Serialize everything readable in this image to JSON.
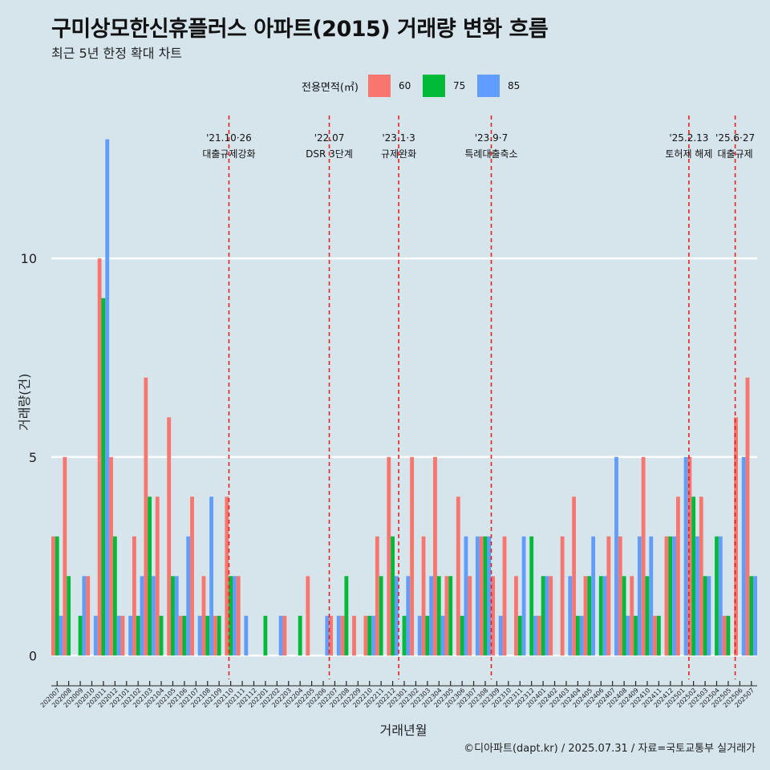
{
  "title": "구미상모한신휴플러스 아파트(2015) 거래량 변화 흐름",
  "subtitle": "최근 5년 한정 확대 차트",
  "caption": "©디아파트(dapt.kr) / 2025.07.31 / 자료=국토교통부 실거래가",
  "colors": {
    "background": "#d6e4ec",
    "grid": "#ffffff",
    "event_line": "#e8211c",
    "text": "#111111"
  },
  "legend": {
    "title": "전용면적(㎡)",
    "items": [
      {
        "label": "60",
        "color": "#f8766d"
      },
      {
        "label": "75",
        "color": "#00ba38"
      },
      {
        "label": "85",
        "color": "#619cff"
      }
    ]
  },
  "chart_data": {
    "type": "bar",
    "xlabel": "거래년월",
    "ylabel": "거래량(건)",
    "ylim": [
      -0.6,
      13.6
    ],
    "yticks": [
      0,
      5,
      10
    ],
    "grid": true,
    "legend_position": "top",
    "categories": [
      "202007",
      "202008",
      "202009",
      "202010",
      "202011",
      "202012",
      "202101",
      "202102",
      "202103",
      "202104",
      "202105",
      "202106",
      "202107",
      "202108",
      "202109",
      "202110",
      "202111",
      "202112",
      "202201",
      "202202",
      "202203",
      "202204",
      "202205",
      "202206",
      "202207",
      "202208",
      "202209",
      "202210",
      "202211",
      "202212",
      "202301",
      "202302",
      "202303",
      "202304",
      "202305",
      "202306",
      "202307",
      "202308",
      "202309",
      "202310",
      "202311",
      "202312",
      "202401",
      "202402",
      "202403",
      "202404",
      "202405",
      "202406",
      "202407",
      "202408",
      "202409",
      "202410",
      "202411",
      "202412",
      "202501",
      "202502",
      "202503",
      "202504",
      "202505",
      "202506",
      "202507"
    ],
    "bars": [
      {
        "month": "202007",
        "area": "60",
        "value": 3
      },
      {
        "month": "202007",
        "area": "75",
        "value": 3
      },
      {
        "month": "202007",
        "area": "85",
        "value": 1
      },
      {
        "month": "202008",
        "area": "60",
        "value": 5
      },
      {
        "month": "202008",
        "area": "75",
        "value": 2
      },
      {
        "month": "202009",
        "area": "75",
        "value": 1
      },
      {
        "month": "202009",
        "area": "85",
        "value": 2
      },
      {
        "month": "202010",
        "area": "60",
        "value": 2
      },
      {
        "month": "202010",
        "area": "85",
        "value": 1
      },
      {
        "month": "202011",
        "area": "60",
        "value": 10
      },
      {
        "month": "202011",
        "area": "75",
        "value": 9
      },
      {
        "month": "202011",
        "area": "85",
        "value": 13
      },
      {
        "month": "202012",
        "area": "60",
        "value": 5
      },
      {
        "month": "202012",
        "area": "75",
        "value": 3
      },
      {
        "month": "202012",
        "area": "85",
        "value": 1
      },
      {
        "month": "202101",
        "area": "60",
        "value": 1
      },
      {
        "month": "202101",
        "area": "85",
        "value": 1
      },
      {
        "month": "202102",
        "area": "60",
        "value": 3
      },
      {
        "month": "202102",
        "area": "75",
        "value": 1
      },
      {
        "month": "202102",
        "area": "85",
        "value": 2
      },
      {
        "month": "202103",
        "area": "60",
        "value": 7
      },
      {
        "month": "202103",
        "area": "75",
        "value": 4
      },
      {
        "month": "202103",
        "area": "85",
        "value": 2
      },
      {
        "month": "202104",
        "area": "60",
        "value": 4
      },
      {
        "month": "202104",
        "area": "75",
        "value": 1
      },
      {
        "month": "202105",
        "area": "60",
        "value": 6
      },
      {
        "month": "202105",
        "area": "75",
        "value": 2
      },
      {
        "month": "202105",
        "area": "85",
        "value": 2
      },
      {
        "month": "202106",
        "area": "60",
        "value": 1
      },
      {
        "month": "202106",
        "area": "75",
        "value": 1
      },
      {
        "month": "202106",
        "area": "85",
        "value": 3
      },
      {
        "month": "202107",
        "area": "60",
        "value": 4
      },
      {
        "month": "202107",
        "area": "85",
        "value": 1
      },
      {
        "month": "202108",
        "area": "60",
        "value": 2
      },
      {
        "month": "202108",
        "area": "75",
        "value": 1
      },
      {
        "month": "202108",
        "area": "85",
        "value": 4
      },
      {
        "month": "202109",
        "area": "60",
        "value": 1
      },
      {
        "month": "202109",
        "area": "75",
        "value": 1
      },
      {
        "month": "202110",
        "area": "60",
        "value": 4
      },
      {
        "month": "202110",
        "area": "75",
        "value": 2
      },
      {
        "month": "202110",
        "area": "85",
        "value": 2
      },
      {
        "month": "202111",
        "area": "60",
        "value": 2
      },
      {
        "month": "202111",
        "area": "85",
        "value": 1
      },
      {
        "month": "202201",
        "area": "75",
        "value": 1
      },
      {
        "month": "202202",
        "area": "85",
        "value": 1
      },
      {
        "month": "202203",
        "area": "60",
        "value": 1
      },
      {
        "month": "202204",
        "area": "75",
        "value": 1
      },
      {
        "month": "202205",
        "area": "60",
        "value": 2
      },
      {
        "month": "202206",
        "area": "85",
        "value": 1
      },
      {
        "month": "202207",
        "area": "60",
        "value": 1
      },
      {
        "month": "202207",
        "area": "85",
        "value": 1
      },
      {
        "month": "202208",
        "area": "60",
        "value": 1
      },
      {
        "month": "202208",
        "area": "75",
        "value": 2
      },
      {
        "month": "202209",
        "area": "60",
        "value": 1
      },
      {
        "month": "202210",
        "area": "60",
        "value": 1
      },
      {
        "month": "202210",
        "area": "75",
        "value": 1
      },
      {
        "month": "202210",
        "area": "85",
        "value": 1
      },
      {
        "month": "202211",
        "area": "60",
        "value": 3
      },
      {
        "month": "202211",
        "area": "75",
        "value": 2
      },
      {
        "month": "202212",
        "area": "60",
        "value": 5
      },
      {
        "month": "202212",
        "area": "75",
        "value": 3
      },
      {
        "month": "202212",
        "area": "85",
        "value": 2
      },
      {
        "month": "202301",
        "area": "75",
        "value": 1
      },
      {
        "month": "202301",
        "area": "85",
        "value": 2
      },
      {
        "month": "202302",
        "area": "60",
        "value": 5
      },
      {
        "month": "202302",
        "area": "85",
        "value": 1
      },
      {
        "month": "202303",
        "area": "60",
        "value": 3
      },
      {
        "month": "202303",
        "area": "75",
        "value": 1
      },
      {
        "month": "202303",
        "area": "85",
        "value": 2
      },
      {
        "month": "202304",
        "area": "60",
        "value": 5
      },
      {
        "month": "202304",
        "area": "75",
        "value": 2
      },
      {
        "month": "202304",
        "area": "85",
        "value": 1
      },
      {
        "month": "202305",
        "area": "60",
        "value": 2
      },
      {
        "month": "202305",
        "area": "75",
        "value": 2
      },
      {
        "month": "202306",
        "area": "60",
        "value": 4
      },
      {
        "month": "202306",
        "area": "75",
        "value": 1
      },
      {
        "month": "202306",
        "area": "85",
        "value": 3
      },
      {
        "month": "202307",
        "area": "60",
        "value": 2
      },
      {
        "month": "202307",
        "area": "85",
        "value": 3
      },
      {
        "month": "202308",
        "area": "60",
        "value": 3
      },
      {
        "month": "202308",
        "area": "75",
        "value": 3
      },
      {
        "month": "202308",
        "area": "85",
        "value": 3
      },
      {
        "month": "202309",
        "area": "60",
        "value": 2
      },
      {
        "month": "202309",
        "area": "85",
        "value": 1
      },
      {
        "month": "202310",
        "area": "60",
        "value": 3
      },
      {
        "month": "202311",
        "area": "60",
        "value": 2
      },
      {
        "month": "202311",
        "area": "75",
        "value": 1
      },
      {
        "month": "202311",
        "area": "85",
        "value": 3
      },
      {
        "month": "202312",
        "area": "75",
        "value": 3
      },
      {
        "month": "202312",
        "area": "85",
        "value": 1
      },
      {
        "month": "202401",
        "area": "60",
        "value": 1
      },
      {
        "month": "202401",
        "area": "75",
        "value": 2
      },
      {
        "month": "202401",
        "area": "85",
        "value": 2
      },
      {
        "month": "202402",
        "area": "60",
        "value": 2
      },
      {
        "month": "202403",
        "area": "60",
        "value": 3
      },
      {
        "month": "202403",
        "area": "85",
        "value": 2
      },
      {
        "month": "202404",
        "area": "60",
        "value": 4
      },
      {
        "month": "202404",
        "area": "75",
        "value": 1
      },
      {
        "month": "202404",
        "area": "85",
        "value": 1
      },
      {
        "month": "202405",
        "area": "60",
        "value": 2
      },
      {
        "month": "202405",
        "area": "75",
        "value": 2
      },
      {
        "month": "202405",
        "area": "85",
        "value": 3
      },
      {
        "month": "202406",
        "area": "75",
        "value": 2
      },
      {
        "month": "202406",
        "area": "85",
        "value": 2
      },
      {
        "month": "202407",
        "area": "60",
        "value": 3
      },
      {
        "month": "202407",
        "area": "85",
        "value": 5
      },
      {
        "month": "202408",
        "area": "60",
        "value": 3
      },
      {
        "month": "202408",
        "area": "75",
        "value": 2
      },
      {
        "month": "202408",
        "area": "85",
        "value": 1
      },
      {
        "month": "202409",
        "area": "60",
        "value": 2
      },
      {
        "month": "202409",
        "area": "75",
        "value": 1
      },
      {
        "month": "202409",
        "area": "85",
        "value": 3
      },
      {
        "month": "202410",
        "area": "60",
        "value": 5
      },
      {
        "month": "202410",
        "area": "75",
        "value": 2
      },
      {
        "month": "202410",
        "area": "85",
        "value": 3
      },
      {
        "month": "202411",
        "area": "60",
        "value": 1
      },
      {
        "month": "202411",
        "area": "75",
        "value": 1
      },
      {
        "month": "202412",
        "area": "60",
        "value": 3
      },
      {
        "month": "202412",
        "area": "75",
        "value": 3
      },
      {
        "month": "202412",
        "area": "85",
        "value": 3
      },
      {
        "month": "202501",
        "area": "60",
        "value": 4
      },
      {
        "month": "202501",
        "area": "85",
        "value": 5
      },
      {
        "month": "202502",
        "area": "60",
        "value": 5
      },
      {
        "month": "202502",
        "area": "75",
        "value": 4
      },
      {
        "month": "202502",
        "area": "85",
        "value": 3
      },
      {
        "month": "202503",
        "area": "60",
        "value": 4
      },
      {
        "month": "202503",
        "area": "75",
        "value": 2
      },
      {
        "month": "202503",
        "area": "85",
        "value": 2
      },
      {
        "month": "202504",
        "area": "75",
        "value": 3
      },
      {
        "month": "202504",
        "area": "85",
        "value": 3
      },
      {
        "month": "202505",
        "area": "60",
        "value": 1
      },
      {
        "month": "202505",
        "area": "75",
        "value": 1
      },
      {
        "month": "202506",
        "area": "60",
        "value": 6
      },
      {
        "month": "202506",
        "area": "85",
        "value": 5
      },
      {
        "month": "202507",
        "area": "60",
        "value": 7
      },
      {
        "month": "202507",
        "area": "75",
        "value": 2
      },
      {
        "month": "202507",
        "area": "85",
        "value": 2
      }
    ],
    "annotations": [
      {
        "date_label": "'21.10·26",
        "event": "대출규제강화",
        "month": "202110",
        "offset": 0.35
      },
      {
        "date_label": "'22.07",
        "event": "DSR 3단계",
        "month": "202207",
        "offset": 0.0
      },
      {
        "date_label": "'23.1·3",
        "event": "규제완화",
        "month": "202301",
        "offset": 0.0
      },
      {
        "date_label": "'23.9·7",
        "event": "특례대출축소",
        "month": "202309",
        "offset": 0.0
      },
      {
        "date_label": "'25.2.13",
        "event": "토허제 해제",
        "month": "202502",
        "offset": 0.1
      },
      {
        "date_label": "'25.6·27",
        "event": "대출규제",
        "month": "202506",
        "offset": 0.1
      }
    ]
  }
}
